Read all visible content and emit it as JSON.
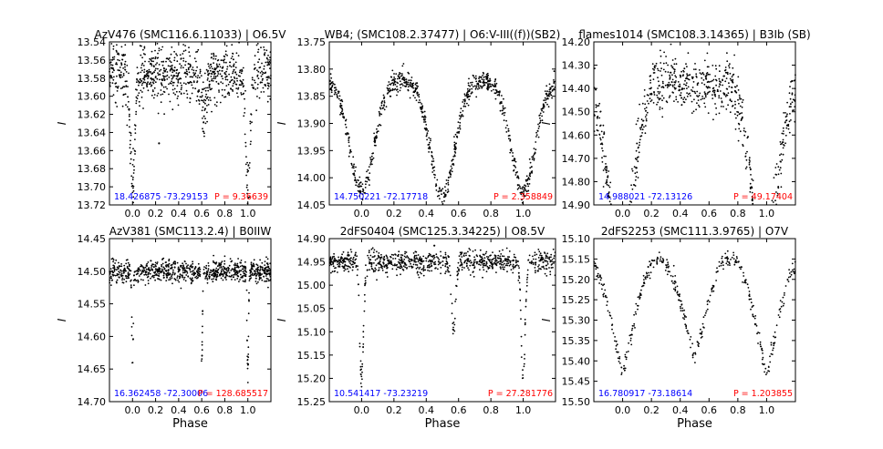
{
  "figure": {
    "xlabel": "Phase",
    "ylabel": "I",
    "colors": {
      "coords": "#0000ff",
      "period": "#ff0000",
      "points": "#000000",
      "frame": "#000000"
    }
  },
  "chart_data": [
    {
      "type": "scatter",
      "title": "AzV476 (SMC116.6.11033) | O6.5V",
      "xlabel": "",
      "ylabel": "I",
      "xlim": [
        -0.2,
        1.2
      ],
      "ylim": [
        13.72,
        13.54
      ],
      "x_ticks": [
        "0.0",
        "0.2",
        "0.4",
        "0.6",
        "0.8",
        "1.0"
      ],
      "y_ticks": [
        "13.54",
        "13.56",
        "13.58",
        "13.60",
        "13.62",
        "13.64",
        "13.66",
        "13.68",
        "13.70",
        "13.72"
      ],
      "coords": "18.426875 -73.29153",
      "period": "P = 9.36639",
      "model": {
        "base": 13.575,
        "noise": 0.015,
        "dips": [
          [
            0.0,
            0.125,
            0.02
          ],
          [
            0.62,
            0.045,
            0.022
          ]
        ],
        "outliers": [
          [
            0.23,
            13.652
          ]
        ]
      }
    },
    {
      "type": "scatter",
      "title": "WB4; (SMC108.2.37477) | O6:V-III((f))(SB2)",
      "xlabel": "",
      "ylabel": "I",
      "xlim": [
        -0.2,
        1.2
      ],
      "ylim": [
        14.05,
        13.75
      ],
      "x_ticks": [
        "0.0",
        "0.2",
        "0.4",
        "0.6",
        "0.8",
        "1.0"
      ],
      "y_ticks": [
        "13.75",
        "13.80",
        "13.85",
        "13.90",
        "13.95",
        "14.00",
        "14.05"
      ],
      "coords": "14.750221 -72.17718",
      "period": "P = 2.358849",
      "model": {
        "base": 13.82,
        "noise": 0.01,
        "dips": [
          [
            0.0,
            0.205,
            0.075
          ],
          [
            0.5,
            0.215,
            0.075
          ]
        ],
        "outliers": []
      }
    },
    {
      "type": "scatter",
      "title": "flames1014 (SMC108.3.14365) | B3Ib (SB)",
      "xlabel": "",
      "ylabel": "I",
      "xlim": [
        -0.2,
        1.2
      ],
      "ylim": [
        14.9,
        14.2
      ],
      "x_ticks": [
        "0.0",
        "0.2",
        "0.4",
        "0.6",
        "0.8",
        "1.0"
      ],
      "y_ticks": [
        "14.20",
        "14.30",
        "14.40",
        "14.50",
        "14.60",
        "14.70",
        "14.80",
        "14.90"
      ],
      "coords": "14.988021 -72.13126",
      "period": "P = 49.17404",
      "model": {
        "base": 14.38,
        "noise": 0.06,
        "dips": [
          [
            0.0,
            0.39,
            0.085
          ],
          [
            0.97,
            0.39,
            0.085
          ]
        ],
        "outliers": []
      }
    },
    {
      "type": "scatter",
      "title": "AzV381 (SMC113.2.4) | B0IIW",
      "xlabel": "",
      "ylabel": "I",
      "xlim": [
        -0.2,
        1.2
      ],
      "ylim": [
        14.7,
        14.45
      ],
      "x_ticks": [
        "0.0",
        "0.2",
        "0.4",
        "0.6",
        "0.8",
        "1.0"
      ],
      "y_ticks": [
        "14.45",
        "14.50",
        "14.55",
        "14.60",
        "14.65",
        "14.70"
      ],
      "coords": "16.362458 -72.30006",
      "period": "P = 128.685517",
      "model": {
        "base": 14.5,
        "noise": 0.008,
        "dips": [
          [
            0.0,
            0.155,
            0.006
          ],
          [
            0.6,
            0.14,
            0.006
          ]
        ],
        "outliers": []
      }
    },
    {
      "type": "scatter",
      "title": "2dFS0404 (SMC125.3.34225) | O8.5V",
      "xlabel": "",
      "ylabel": "I",
      "xlim": [
        -0.2,
        1.2
      ],
      "ylim": [
        15.25,
        14.9
      ],
      "x_ticks": [
        "0.0",
        "0.2",
        "0.4",
        "0.6",
        "0.8",
        "1.0"
      ],
      "y_ticks": [
        "14.90",
        "14.95",
        "15.00",
        "15.05",
        "15.10",
        "15.15",
        "15.20",
        "15.25"
      ],
      "coords": "10.541417 -73.23219",
      "period": "P = 27.281776",
      "model": {
        "base": 14.95,
        "noise": 0.012,
        "dips": [
          [
            0.0,
            0.25,
            0.012
          ],
          [
            0.57,
            0.15,
            0.012
          ]
        ],
        "outliers": [
          [
            0.45,
            14.915
          ],
          [
            0.62,
            14.93
          ]
        ]
      }
    },
    {
      "type": "scatter",
      "title": "2dFS2253 (SMC111.3.9765) | O7V",
      "xlabel": "",
      "ylabel": "I",
      "xlim": [
        -0.2,
        1.2
      ],
      "ylim": [
        15.5,
        15.1
      ],
      "x_ticks": [
        "0.0",
        "0.2",
        "0.4",
        "0.6",
        "0.8",
        "1.0"
      ],
      "y_ticks": [
        "15.10",
        "15.15",
        "15.20",
        "15.25",
        "15.30",
        "15.35",
        "15.40",
        "15.45",
        "15.50"
      ],
      "coords": "16.780917 -73.18614",
      "period": "P = 1.203855",
      "model": {
        "ellipsoidal": true,
        "max": 15.15,
        "minA": 15.44,
        "minB": 15.4,
        "noise": 0.01
      }
    }
  ]
}
